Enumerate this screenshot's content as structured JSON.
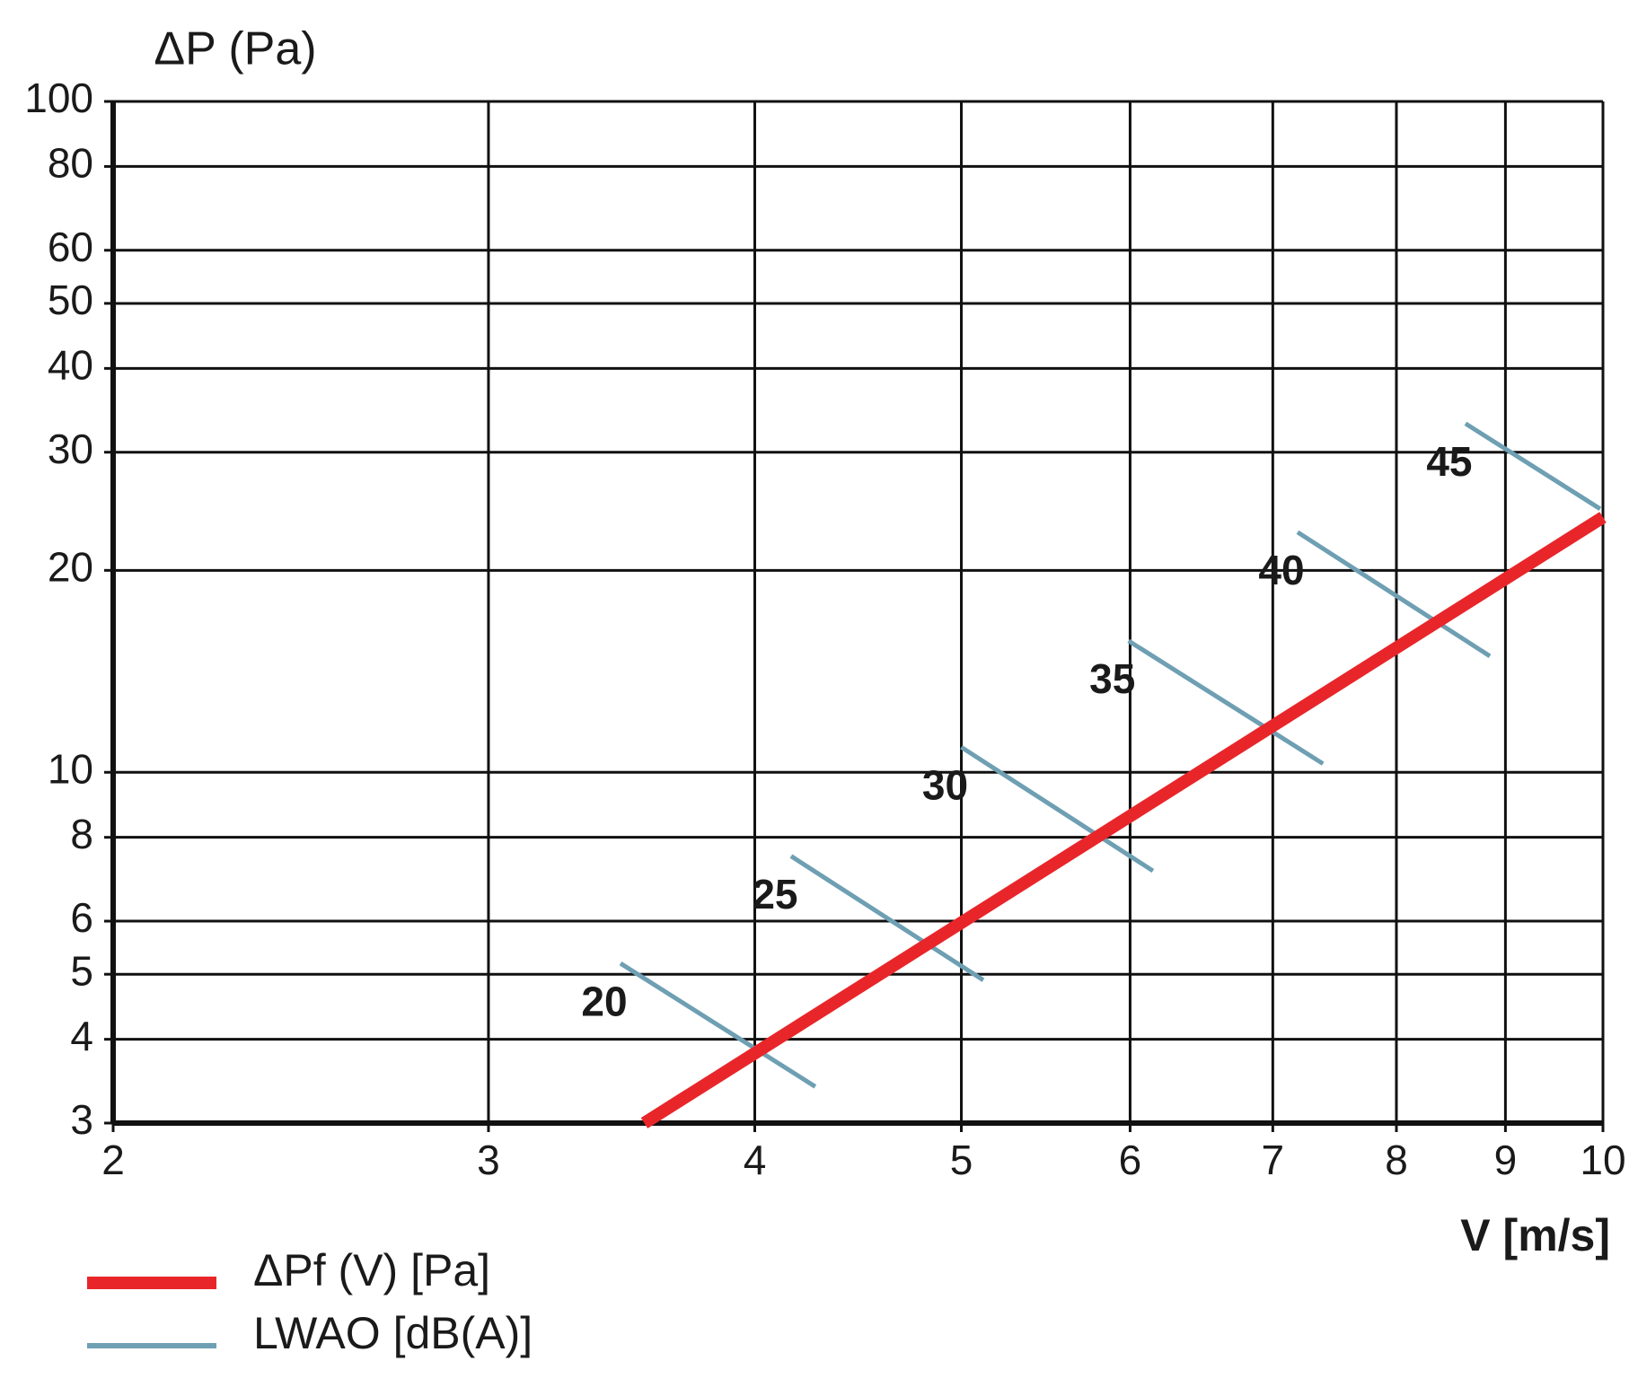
{
  "chart_data": {
    "type": "line",
    "y_label": "ΔP (Pa)",
    "x_label": "V [m/s]",
    "xscale": "log",
    "yscale": "log",
    "grid": true,
    "xlim": [
      2,
      10
    ],
    "xticks": [
      2,
      3,
      4,
      5,
      6,
      7,
      8,
      9,
      10
    ],
    "ylim": [
      3,
      100
    ],
    "yticks": [
      3,
      4,
      5,
      6,
      8,
      10,
      20,
      30,
      40,
      50,
      60,
      80,
      100
    ],
    "series": [
      {
        "name": "ΔPf (V) [Pa]",
        "color": "#e8262a",
        "x": [
          3.55,
          10
        ],
        "values": [
          3,
          24
        ]
      }
    ],
    "level_lines": {
      "name": "LWAO [dB(A)]",
      "color": "#6e9fb3",
      "lines": [
        {
          "level": 20,
          "x": [
            3.46,
            4.27
          ],
          "values": [
            5.19,
            3.4
          ]
        },
        {
          "level": 25,
          "x": [
            4.16,
            5.12
          ],
          "values": [
            7.5,
            4.9
          ]
        },
        {
          "level": 30,
          "x": [
            5.0,
            6.15
          ],
          "values": [
            10.9,
            7.13
          ]
        },
        {
          "level": 35,
          "x": [
            5.99,
            7.39
          ],
          "values": [
            15.7,
            10.3
          ]
        },
        {
          "level": 40,
          "x": [
            7.19,
            8.85
          ],
          "values": [
            22.8,
            14.9
          ]
        },
        {
          "level": 45,
          "x": [
            8.62,
            9.97
          ],
          "values": [
            33.1,
            24.7
          ]
        }
      ]
    }
  }
}
